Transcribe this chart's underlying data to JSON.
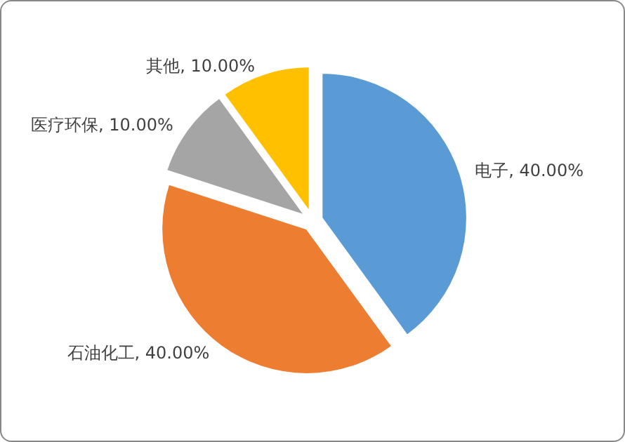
{
  "chart_data": {
    "type": "pie",
    "categories": [
      "电子",
      "石油化工",
      "医疗环保",
      "其他"
    ],
    "values": [
      40,
      40,
      10,
      10
    ],
    "value_labels": [
      "40.00%",
      "40.00%",
      "10.00%",
      "10.00%"
    ],
    "colors": [
      "#5b9bd5",
      "#ed7d31",
      "#a5a5a5",
      "#ffc000"
    ]
  }
}
